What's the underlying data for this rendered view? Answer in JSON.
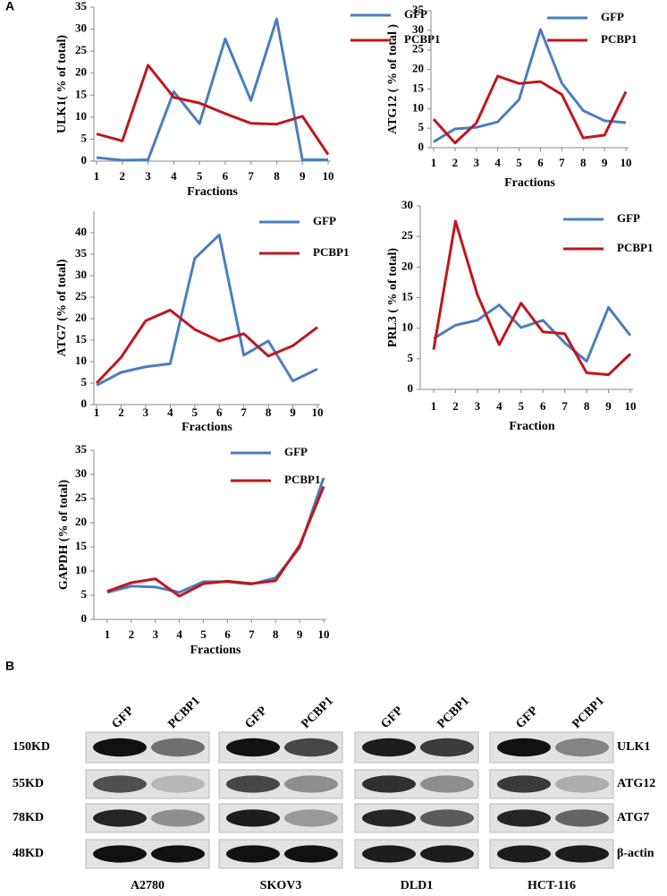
{
  "panels": [
    "A",
    "B"
  ],
  "chart_data": [
    {
      "type": "line",
      "ylabel": "ULK1( % of total)",
      "xlabel": "Fractions",
      "x": [
        1,
        2,
        3,
        4,
        5,
        6,
        7,
        8,
        9,
        10
      ],
      "xlim": [
        1,
        10
      ],
      "xticks": [
        1,
        2,
        3,
        4,
        5,
        6,
        7,
        8,
        9,
        10
      ],
      "ylim": [
        0,
        35
      ],
      "yticks": [
        0,
        5,
        10,
        15,
        20,
        25,
        30,
        35
      ],
      "series": [
        {
          "name": "GFP",
          "color": "#4a7ebf",
          "values": [
            0.8,
            0.2,
            0.3,
            15.8,
            8.5,
            27.8,
            13.8,
            32.3,
            0.3,
            0.3
          ]
        },
        {
          "name": "PCBP1",
          "color": "#c0161c",
          "values": [
            6.2,
            4.6,
            21.8,
            14.5,
            13.2,
            10.8,
            8.6,
            8.4,
            10.2,
            1.5
          ]
        }
      ]
    },
    {
      "type": "line",
      "ylabel": "ATG12 ( % of total )",
      "xlabel": "Fractions",
      "x": [
        1,
        2,
        3,
        4,
        5,
        6,
        7,
        8,
        9,
        10
      ],
      "xlim": [
        1,
        10
      ],
      "xticks": [
        1,
        2,
        3,
        4,
        5,
        6,
        7,
        8,
        9,
        10
      ],
      "ylim": [
        0,
        35
      ],
      "yticks": [
        0,
        5,
        10,
        15,
        20,
        25,
        30,
        35
      ],
      "series": [
        {
          "name": "GFP",
          "color": "#4a7ebf",
          "values": [
            1.5,
            4.8,
            5.2,
            6.6,
            12.3,
            30.2,
            16.5,
            9.5,
            6.9,
            6.4
          ]
        },
        {
          "name": "PCBP1",
          "color": "#c0161c",
          "values": [
            7.3,
            1.2,
            6.3,
            18.3,
            16.4,
            16.9,
            13.6,
            2.5,
            3.2,
            14.3
          ]
        }
      ]
    },
    {
      "type": "line",
      "ylabel": "ATG7 (% of total)",
      "xlabel": "Fractions",
      "x": [
        1,
        2,
        3,
        4,
        5,
        6,
        7,
        8,
        9,
        10
      ],
      "xlim": [
        1,
        10
      ],
      "xticks": [
        1,
        2,
        3,
        4,
        5,
        6,
        7,
        8,
        9,
        10
      ],
      "ylim": [
        0,
        45
      ],
      "yticks": [
        0,
        5,
        10,
        15,
        20,
        25,
        30,
        35,
        40
      ],
      "series": [
        {
          "name": "GFP",
          "color": "#4a7ebf",
          "values": [
            4.5,
            7.5,
            8.8,
            9.5,
            34,
            39.5,
            11.5,
            14.8,
            5.5,
            8.3
          ]
        },
        {
          "name": "PCBP1",
          "color": "#c0161c",
          "values": [
            5,
            11,
            19.5,
            22,
            17.5,
            14.8,
            16.5,
            11.3,
            13.7,
            18
          ]
        }
      ]
    },
    {
      "type": "line",
      "ylabel": "PRL3 ( % of total)",
      "xlabel": "Fraction",
      "x": [
        1,
        2,
        3,
        4,
        5,
        6,
        7,
        8,
        9,
        10
      ],
      "xlim": [
        1,
        10
      ],
      "xticks": [
        1,
        2,
        3,
        4,
        5,
        6,
        7,
        8,
        9,
        10
      ],
      "ylim": [
        0,
        30
      ],
      "yticks": [
        0,
        5,
        10,
        15,
        20,
        25,
        30
      ],
      "series": [
        {
          "name": "GFP",
          "color": "#4a7ebf",
          "values": [
            8.3,
            10.5,
            11.3,
            13.8,
            10.1,
            11.3,
            7.6,
            4.6,
            13.4,
            8.8
          ]
        },
        {
          "name": "PCBP1",
          "color": "#c0161c",
          "values": [
            6.5,
            27.5,
            15.5,
            7.3,
            14.1,
            9.4,
            9.1,
            2.7,
            2.4,
            5.8
          ]
        }
      ]
    },
    {
      "type": "line",
      "ylabel": "GAPDH (% of total)",
      "xlabel": "Fractions",
      "x": [
        1,
        2,
        3,
        4,
        5,
        6,
        7,
        8,
        9,
        10
      ],
      "xlim": [
        1,
        10
      ],
      "xticks": [
        1,
        2,
        3,
        4,
        5,
        6,
        7,
        8,
        9,
        10
      ],
      "ylim": [
        0,
        35
      ],
      "yticks": [
        0,
        5,
        10,
        15,
        20,
        25,
        30,
        35
      ],
      "series": [
        {
          "name": "GFP",
          "color": "#4a7ebf",
          "values": [
            5.6,
            6.9,
            6.7,
            5.6,
            7.8,
            7.8,
            7.3,
            8.6,
            14.8,
            29.3
          ]
        },
        {
          "name": "PCBP1",
          "color": "#c0161c",
          "values": [
            5.8,
            7.6,
            8.4,
            4.8,
            7.4,
            7.9,
            7.4,
            8.0,
            15.3,
            27.5
          ]
        }
      ]
    }
  ],
  "blot": {
    "cell_lines": [
      "A2780",
      "SKOV3",
      "DLD1",
      "HCT-116"
    ],
    "lanes": [
      "GFP",
      "PCBP1"
    ],
    "sizes": [
      "150KD",
      "55KD",
      "78KD",
      "48KD"
    ],
    "proteins": [
      "ULK1",
      "ATG12",
      "ATG7",
      "β-actin"
    ]
  }
}
